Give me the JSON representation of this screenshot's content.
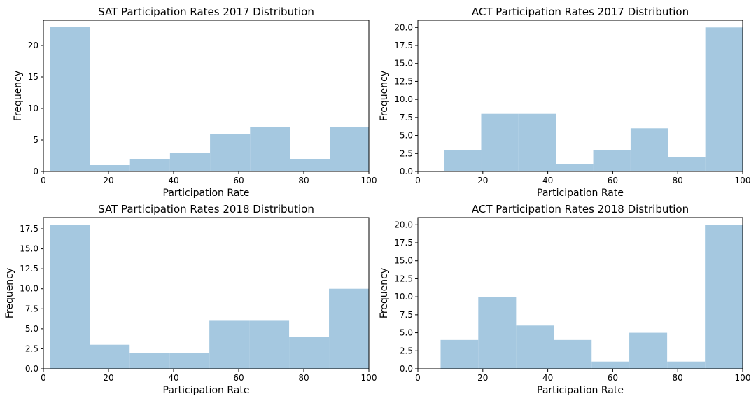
{
  "figure": {
    "bar_color": "#a5c8e0",
    "frame_color": "#000000"
  },
  "chart_data": [
    {
      "type": "bar",
      "title": "SAT Participation Rates 2017 Distribution",
      "xlabel": "Participation Rate",
      "ylabel": "Frequency",
      "xlim": [
        0,
        100
      ],
      "ylim": [
        0,
        24
      ],
      "xticks": [
        0,
        20,
        40,
        60,
        80,
        100
      ],
      "yticks": [
        0,
        5,
        10,
        15,
        20
      ],
      "ytick_labels": [
        "0",
        "5",
        "10",
        "15",
        "20"
      ],
      "bin_edges": [
        2,
        14.3,
        26.6,
        38.9,
        51.2,
        63.5,
        75.8,
        88.1,
        100
      ],
      "values": [
        23,
        1,
        2,
        3,
        6,
        7,
        2,
        7
      ]
    },
    {
      "type": "bar",
      "title": "ACT Participation Rates 2017 Distribution",
      "xlabel": "Participation Rate",
      "ylabel": "Frequency",
      "xlim": [
        0,
        100
      ],
      "ylim": [
        0,
        21
      ],
      "xticks": [
        0,
        20,
        40,
        60,
        80,
        100
      ],
      "yticks": [
        0,
        2.5,
        5,
        7.5,
        10,
        12.5,
        15,
        17.5,
        20
      ],
      "ytick_labels": [
        "0.0",
        "2.5",
        "5.0",
        "7.5",
        "10.0",
        "12.5",
        "15.0",
        "17.5",
        "20.0"
      ],
      "bin_edges": [
        8,
        19.5,
        31,
        42.5,
        54,
        65.5,
        77,
        88.5,
        100
      ],
      "values": [
        3,
        8,
        8,
        1,
        3,
        6,
        2,
        20
      ]
    },
    {
      "type": "bar",
      "title": "SAT Participation Rates 2018 Distribution",
      "xlabel": "Participation Rate",
      "ylabel": "Frequency",
      "xlim": [
        0,
        100
      ],
      "ylim": [
        0,
        18.9
      ],
      "xticks": [
        0,
        20,
        40,
        60,
        80,
        100
      ],
      "yticks": [
        0,
        2.5,
        5,
        7.5,
        10,
        12.5,
        15,
        17.5
      ],
      "ytick_labels": [
        "0.0",
        "2.5",
        "5.0",
        "7.5",
        "10.0",
        "12.5",
        "15.0",
        "17.5"
      ],
      "bin_edges": [
        2,
        14.25,
        26.5,
        38.75,
        51,
        63.25,
        75.5,
        87.75,
        100
      ],
      "values": [
        18,
        3,
        2,
        2,
        6,
        6,
        4,
        10
      ]
    },
    {
      "type": "bar",
      "title": "ACT Participation Rates 2018 Distribution",
      "xlabel": "Participation Rate",
      "ylabel": "Frequency",
      "xlim": [
        0,
        100
      ],
      "ylim": [
        0,
        21
      ],
      "xticks": [
        0,
        20,
        40,
        60,
        80,
        100
      ],
      "yticks": [
        0,
        2.5,
        5,
        7.5,
        10,
        12.5,
        15,
        17.5,
        20
      ],
      "ytick_labels": [
        "0.0",
        "2.5",
        "5.0",
        "7.5",
        "10.0",
        "12.5",
        "15.0",
        "17.5",
        "20.0"
      ],
      "bin_edges": [
        7,
        18.6,
        30.25,
        41.9,
        53.5,
        65.1,
        76.75,
        88.4,
        100
      ],
      "values": [
        4,
        10,
        6,
        4,
        1,
        5,
        1,
        20
      ]
    }
  ]
}
